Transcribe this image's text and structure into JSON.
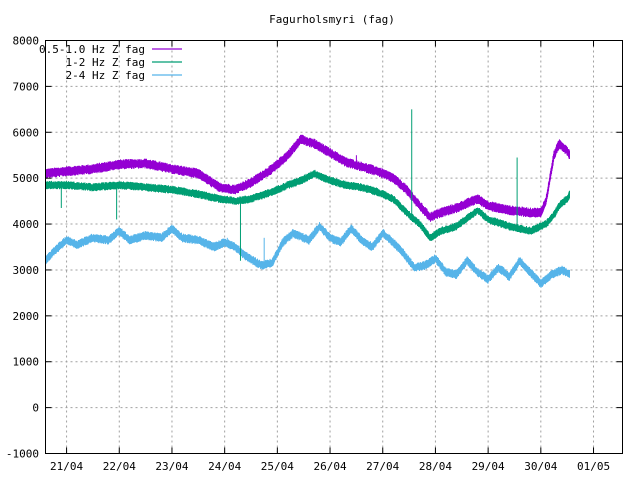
{
  "chart_data": {
    "type": "line",
    "title": "Fagurholsmyri (fag)",
    "xlabel": "",
    "ylabel": "",
    "ylim": [
      -1000,
      8000
    ],
    "yticks": [
      -1000,
      0,
      1000,
      2000,
      3000,
      4000,
      5000,
      6000,
      7000,
      8000
    ],
    "xlim_days": [
      20.6,
      31.55
    ],
    "xticks": [
      {
        "label": "21/04",
        "day": 21
      },
      {
        "label": "22/04",
        "day": 22
      },
      {
        "label": "23/04",
        "day": 23
      },
      {
        "label": "24/04",
        "day": 24
      },
      {
        "label": "25/04",
        "day": 25
      },
      {
        "label": "26/04",
        "day": 26
      },
      {
        "label": "27/04",
        "day": 27
      },
      {
        "label": "28/04",
        "day": 28
      },
      {
        "label": "29/04",
        "day": 29
      },
      {
        "label": "30/04",
        "day": 30
      },
      {
        "label": "01/05",
        "day": 31
      }
    ],
    "grid": true,
    "legend_position": "top-left",
    "series": [
      {
        "name": "0.5-1.0 Hz Z fag",
        "color": "#9400d3",
        "noise": 110,
        "points": [
          [
            20.6,
            5100
          ],
          [
            21.0,
            5150
          ],
          [
            21.5,
            5200
          ],
          [
            22.0,
            5300
          ],
          [
            22.5,
            5320
          ],
          [
            23.0,
            5200
          ],
          [
            23.5,
            5100
          ],
          [
            23.9,
            4800
          ],
          [
            24.2,
            4750
          ],
          [
            24.5,
            4900
          ],
          [
            24.9,
            5200
          ],
          [
            25.2,
            5500
          ],
          [
            25.45,
            5850
          ],
          [
            25.7,
            5750
          ],
          [
            26.0,
            5550
          ],
          [
            26.3,
            5350
          ],
          [
            26.6,
            5250
          ],
          [
            26.9,
            5150
          ],
          [
            27.2,
            5000
          ],
          [
            27.45,
            4750
          ],
          [
            27.7,
            4400
          ],
          [
            27.9,
            4150
          ],
          [
            28.1,
            4250
          ],
          [
            28.4,
            4350
          ],
          [
            28.8,
            4550
          ],
          [
            29.0,
            4400
          ],
          [
            29.4,
            4300
          ],
          [
            29.8,
            4250
          ],
          [
            30.0,
            4250
          ],
          [
            30.1,
            4500
          ],
          [
            30.25,
            5500
          ],
          [
            30.35,
            5750
          ],
          [
            30.5,
            5600
          ],
          [
            30.55,
            5500
          ]
        ]
      },
      {
        "name": "1-2 Hz Z fag",
        "color": "#009e73",
        "noise": 90,
        "points": [
          [
            20.6,
            4850
          ],
          [
            21.0,
            4850
          ],
          [
            21.5,
            4800
          ],
          [
            22.0,
            4850
          ],
          [
            22.5,
            4800
          ],
          [
            23.0,
            4750
          ],
          [
            23.5,
            4650
          ],
          [
            23.9,
            4550
          ],
          [
            24.2,
            4500
          ],
          [
            24.5,
            4550
          ],
          [
            24.9,
            4700
          ],
          [
            25.2,
            4850
          ],
          [
            25.45,
            4950
          ],
          [
            25.7,
            5100
          ],
          [
            26.0,
            4950
          ],
          [
            26.3,
            4850
          ],
          [
            26.6,
            4800
          ],
          [
            26.9,
            4700
          ],
          [
            27.2,
            4550
          ],
          [
            27.45,
            4250
          ],
          [
            27.7,
            4000
          ],
          [
            27.9,
            3700
          ],
          [
            28.1,
            3850
          ],
          [
            28.4,
            3950
          ],
          [
            28.8,
            4300
          ],
          [
            29.0,
            4100
          ],
          [
            29.4,
            3950
          ],
          [
            29.8,
            3850
          ],
          [
            30.0,
            3950
          ],
          [
            30.1,
            4000
          ],
          [
            30.25,
            4200
          ],
          [
            30.35,
            4400
          ],
          [
            30.5,
            4550
          ],
          [
            30.55,
            4650
          ]
        ]
      },
      {
        "name": "2-4 Hz Z fag",
        "color": "#56b4e9",
        "noise": 100,
        "points": [
          [
            20.6,
            3200
          ],
          [
            20.8,
            3450
          ],
          [
            21.0,
            3650
          ],
          [
            21.2,
            3550
          ],
          [
            21.5,
            3700
          ],
          [
            21.8,
            3650
          ],
          [
            22.0,
            3850
          ],
          [
            22.2,
            3650
          ],
          [
            22.5,
            3750
          ],
          [
            22.8,
            3700
          ],
          [
            23.0,
            3900
          ],
          [
            23.2,
            3700
          ],
          [
            23.5,
            3650
          ],
          [
            23.8,
            3500
          ],
          [
            24.0,
            3600
          ],
          [
            24.2,
            3500
          ],
          [
            24.4,
            3300
          ],
          [
            24.7,
            3100
          ],
          [
            24.9,
            3150
          ],
          [
            25.1,
            3600
          ],
          [
            25.3,
            3800
          ],
          [
            25.6,
            3650
          ],
          [
            25.8,
            3950
          ],
          [
            26.0,
            3700
          ],
          [
            26.2,
            3600
          ],
          [
            26.4,
            3900
          ],
          [
            26.6,
            3650
          ],
          [
            26.8,
            3500
          ],
          [
            27.0,
            3800
          ],
          [
            27.2,
            3600
          ],
          [
            27.4,
            3350
          ],
          [
            27.6,
            3050
          ],
          [
            27.8,
            3100
          ],
          [
            28.0,
            3250
          ],
          [
            28.2,
            2950
          ],
          [
            28.4,
            2900
          ],
          [
            28.6,
            3200
          ],
          [
            28.8,
            2950
          ],
          [
            29.0,
            2800
          ],
          [
            29.2,
            3050
          ],
          [
            29.4,
            2850
          ],
          [
            29.6,
            3200
          ],
          [
            29.8,
            2950
          ],
          [
            30.0,
            2700
          ],
          [
            30.2,
            2900
          ],
          [
            30.4,
            3000
          ],
          [
            30.55,
            2900
          ]
        ]
      }
    ],
    "spikes": [
      {
        "series": 1,
        "day": 27.55,
        "value": 6500
      },
      {
        "series": 1,
        "day": 29.55,
        "value": 5450
      },
      {
        "series": 1,
        "day": 24.3,
        "value": 3200
      },
      {
        "series": 1,
        "day": 21.95,
        "value": 4100
      },
      {
        "series": 1,
        "day": 20.9,
        "value": 4350
      },
      {
        "series": 0,
        "day": 23.9,
        "value": 4750
      },
      {
        "series": 0,
        "day": 26.5,
        "value": 5500
      },
      {
        "series": 2,
        "day": 24.05,
        "value": 3700
      },
      {
        "series": 2,
        "day": 24.75,
        "value": 3700
      }
    ]
  }
}
